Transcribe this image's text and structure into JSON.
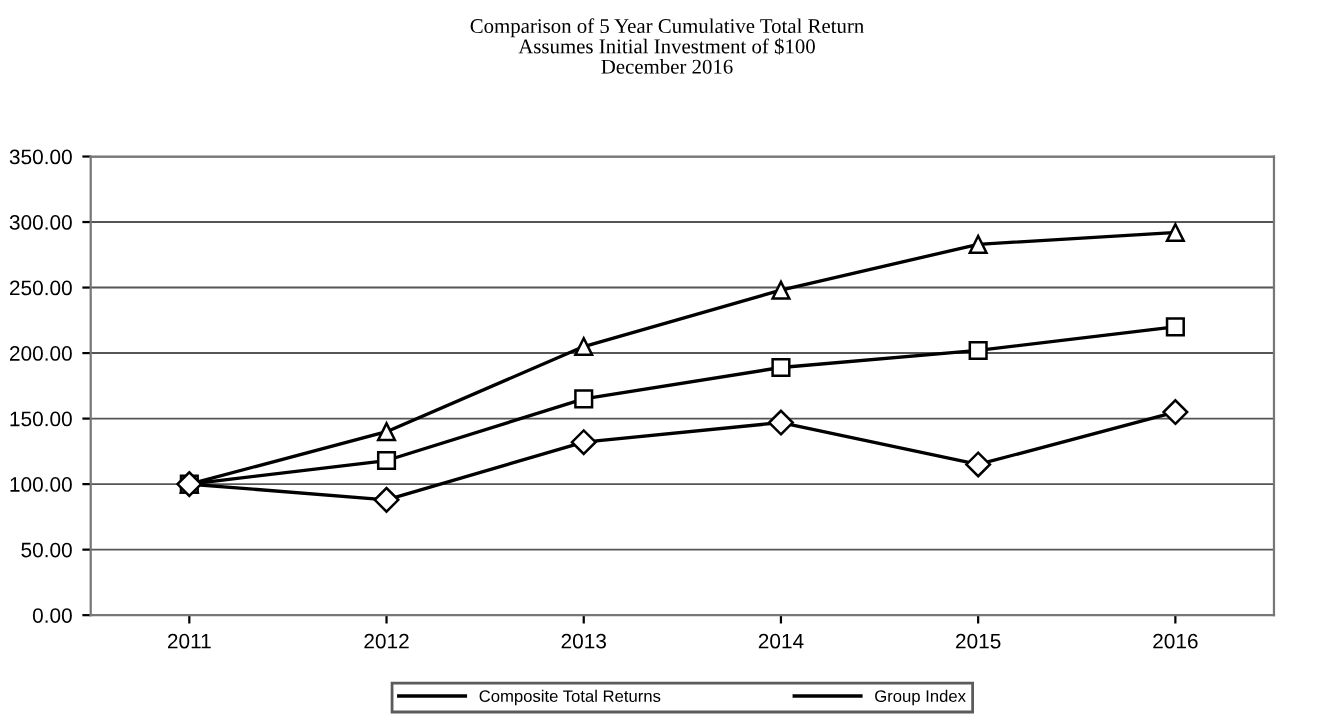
{
  "chart_data": {
    "type": "line",
    "title": "Comparison of 5 Year Cumulative Total Return\nAssumes Initial Investment of $100\nDecember 2016",
    "categories": [
      "2011",
      "2012",
      "2013",
      "2014",
      "2015",
      "2016"
    ],
    "series": [
      {
        "color": "#000000",
        "marker": "triangle",
        "values": [
          100,
          140,
          205,
          248,
          283,
          292
        ]
      },
      {
        "name": "Composite Total Returns",
        "color": "#000000",
        "marker": "square",
        "values": [
          100,
          118,
          165,
          189,
          202,
          220
        ]
      },
      {
        "name": "Group Index",
        "color": "#000000",
        "marker": "diamond",
        "values": [
          100,
          88,
          132,
          147,
          115,
          155
        ]
      }
    ],
    "ylim": [
      0,
      350
    ],
    "yticks": [
      {
        "value": 0,
        "label": "0.00"
      },
      {
        "value": 50,
        "label": "50.00"
      },
      {
        "value": 100,
        "label": "100.00"
      },
      {
        "value": 150,
        "label": "150.00"
      },
      {
        "value": 200,
        "label": "200.00"
      },
      {
        "value": 250,
        "label": "250.00"
      },
      {
        "value": 300,
        "label": "300.00"
      },
      {
        "value": 350,
        "label": "350.00"
      }
    ],
    "grid": "y",
    "legend": "bottom",
    "line_style": "solid"
  }
}
